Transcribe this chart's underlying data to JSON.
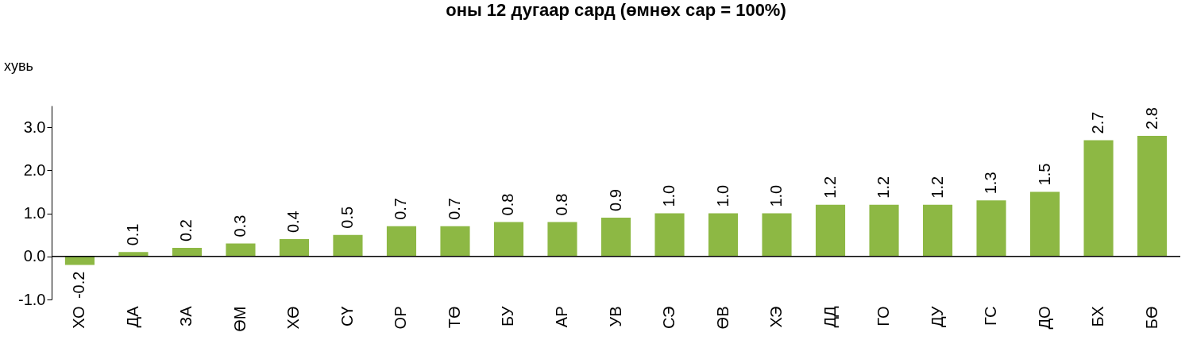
{
  "chart_data": {
    "type": "bar",
    "title": "оны 12 дугаар сард (өмнөх сар = 100%)",
    "ylabel": "хувь",
    "categories": [
      "ХО",
      "ДА",
      "ЗА",
      "ӨМ",
      "ХӨ",
      "СҮ",
      "ОР",
      "ТӨ",
      "БУ",
      "АР",
      "УВ",
      "СЭ",
      "ӨВ",
      "ХЭ",
      "ДД",
      "ГО",
      "ДУ",
      "ГС",
      "ДО",
      "БХ",
      "БӨ"
    ],
    "values": [
      -0.2,
      0.1,
      0.2,
      0.3,
      0.4,
      0.5,
      0.7,
      0.7,
      0.8,
      0.8,
      0.9,
      1.0,
      1.0,
      1.0,
      1.2,
      1.2,
      1.2,
      1.3,
      1.5,
      2.7,
      2.8
    ],
    "color": "#8db844",
    "value_labels": [
      "-0.2",
      "0.1",
      "0.2",
      "0.3",
      "0.4",
      "0.5",
      "0.7",
      "0.7",
      "0.8",
      "0.8",
      "0.9",
      "1.0",
      "1.0",
      "1.0",
      "1.2",
      "1.2",
      "1.2",
      "1.3",
      "1.5",
      "2.7",
      "2.8"
    ],
    "ylim": [
      -1.0,
      3.5
    ],
    "yticks": [
      {
        "value": -1,
        "label": "-1.0"
      },
      {
        "value": 0,
        "label": "0.0"
      },
      {
        "value": 1,
        "label": "1.0"
      },
      {
        "value": 2,
        "label": "2.0"
      },
      {
        "value": 3,
        "label": "3.0"
      }
    ]
  }
}
